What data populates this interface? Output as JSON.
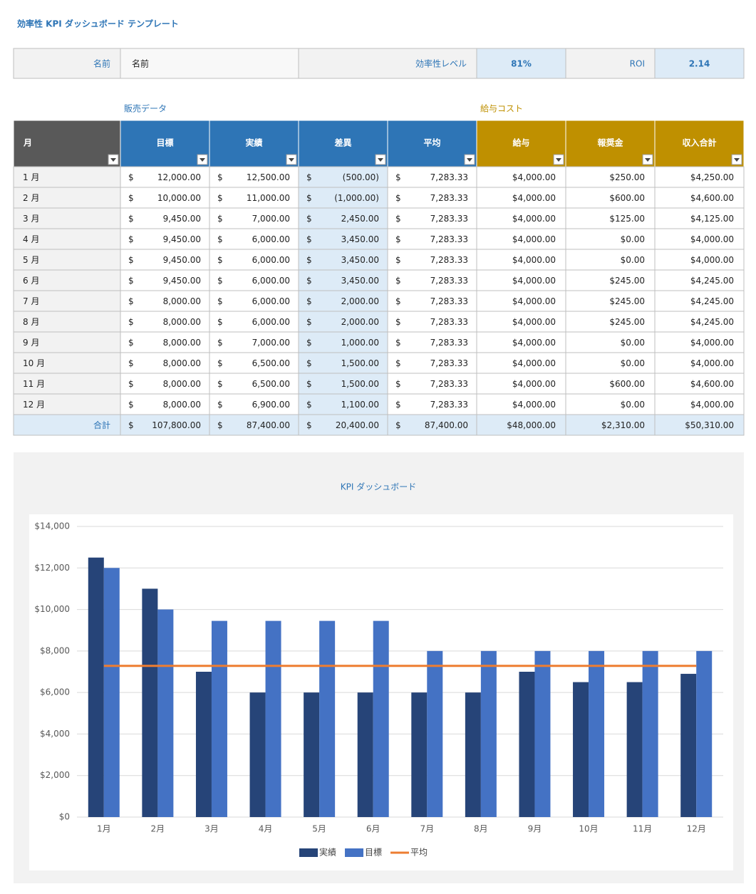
{
  "header": {
    "title": "効率性 KPI ダッシュボード テンプレート"
  },
  "info": {
    "name_label": "名前",
    "name_value": "名前",
    "efficiency_label": "効率性レベル",
    "efficiency_value": "81%",
    "roi_label": "ROI",
    "roi_value": "2.14"
  },
  "sections": {
    "sales": "販売データ",
    "payroll": "給与コスト"
  },
  "table": {
    "columns": [
      "月",
      "目標",
      "実績",
      "差異",
      "平均",
      "給与",
      "報奨金",
      "収入合計"
    ],
    "currency": "$",
    "rows": [
      {
        "month": "1 月",
        "cells": [
          "12,000.00",
          "12,500.00",
          "(500.00)",
          "7,283.33",
          "$4,000.00",
          "$250.00",
          "$4,250.00"
        ]
      },
      {
        "month": "2 月",
        "cells": [
          "10,000.00",
          "11,000.00",
          "(1,000.00)",
          "7,283.33",
          "$4,000.00",
          "$600.00",
          "$4,600.00"
        ]
      },
      {
        "month": "3 月",
        "cells": [
          "9,450.00",
          "7,000.00",
          "2,450.00",
          "7,283.33",
          "$4,000.00",
          "$125.00",
          "$4,125.00"
        ]
      },
      {
        "month": "4 月",
        "cells": [
          "9,450.00",
          "6,000.00",
          "3,450.00",
          "7,283.33",
          "$4,000.00",
          "$0.00",
          "$4,000.00"
        ]
      },
      {
        "month": "5 月",
        "cells": [
          "9,450.00",
          "6,000.00",
          "3,450.00",
          "7,283.33",
          "$4,000.00",
          "$0.00",
          "$4,000.00"
        ]
      },
      {
        "month": "6 月",
        "cells": [
          "9,450.00",
          "6,000.00",
          "3,450.00",
          "7,283.33",
          "$4,000.00",
          "$245.00",
          "$4,245.00"
        ]
      },
      {
        "month": "7 月",
        "cells": [
          "8,000.00",
          "6,000.00",
          "2,000.00",
          "7,283.33",
          "$4,000.00",
          "$245.00",
          "$4,245.00"
        ]
      },
      {
        "month": "8 月",
        "cells": [
          "8,000.00",
          "6,000.00",
          "2,000.00",
          "7,283.33",
          "$4,000.00",
          "$245.00",
          "$4,245.00"
        ]
      },
      {
        "month": "9 月",
        "cells": [
          "8,000.00",
          "7,000.00",
          "1,000.00",
          "7,283.33",
          "$4,000.00",
          "$0.00",
          "$4,000.00"
        ]
      },
      {
        "month": "10 月",
        "cells": [
          "8,000.00",
          "6,500.00",
          "1,500.00",
          "7,283.33",
          "$4,000.00",
          "$0.00",
          "$4,000.00"
        ]
      },
      {
        "month": "11 月",
        "cells": [
          "8,000.00",
          "6,500.00",
          "1,500.00",
          "7,283.33",
          "$4,000.00",
          "$600.00",
          "$4,600.00"
        ]
      },
      {
        "month": "12 月",
        "cells": [
          "8,000.00",
          "6,900.00",
          "1,100.00",
          "7,283.33",
          "$4,000.00",
          "$0.00",
          "$4,000.00"
        ]
      }
    ],
    "total": {
      "label": "合計",
      "cells": [
        "107,800.00",
        "87,400.00",
        "20,400.00",
        "87,400.00",
        "$48,000.00",
        "$2,310.00",
        "$50,310.00"
      ]
    }
  },
  "chart_data": {
    "type": "bar",
    "title": "KPI ダッシュボード",
    "categories": [
      "1月",
      "2月",
      "3月",
      "4月",
      "5月",
      "6月",
      "7月",
      "8月",
      "9月",
      "10月",
      "11月",
      "12月"
    ],
    "series": [
      {
        "name": "実績",
        "color": "#264478",
        "values": [
          12500,
          11000,
          7000,
          6000,
          6000,
          6000,
          6000,
          6000,
          7000,
          6500,
          6500,
          6900
        ]
      },
      {
        "name": "目標",
        "color": "#4472c4",
        "values": [
          12000,
          10000,
          9450,
          9450,
          9450,
          9450,
          8000,
          8000,
          8000,
          8000,
          8000,
          8000
        ]
      },
      {
        "name": "平均",
        "color": "#ed7d31",
        "type": "line",
        "values": [
          7283.33,
          7283.33,
          7283.33,
          7283.33,
          7283.33,
          7283.33,
          7283.33,
          7283.33,
          7283.33,
          7283.33,
          7283.33,
          7283.33
        ]
      }
    ],
    "ylim": [
      0,
      14000
    ],
    "yticks": [
      {
        "value": 0,
        "label": "$0"
      },
      {
        "value": 2000,
        "label": "$2,000"
      },
      {
        "value": 4000,
        "label": "$4,000"
      },
      {
        "value": 6000,
        "label": "$6,000"
      },
      {
        "value": 8000,
        "label": "$8,000"
      },
      {
        "value": 10000,
        "label": "$10,000"
      },
      {
        "value": 12000,
        "label": "$12,000"
      },
      {
        "value": 14000,
        "label": "$14,000"
      }
    ],
    "grid": true,
    "legend": "bottom"
  }
}
